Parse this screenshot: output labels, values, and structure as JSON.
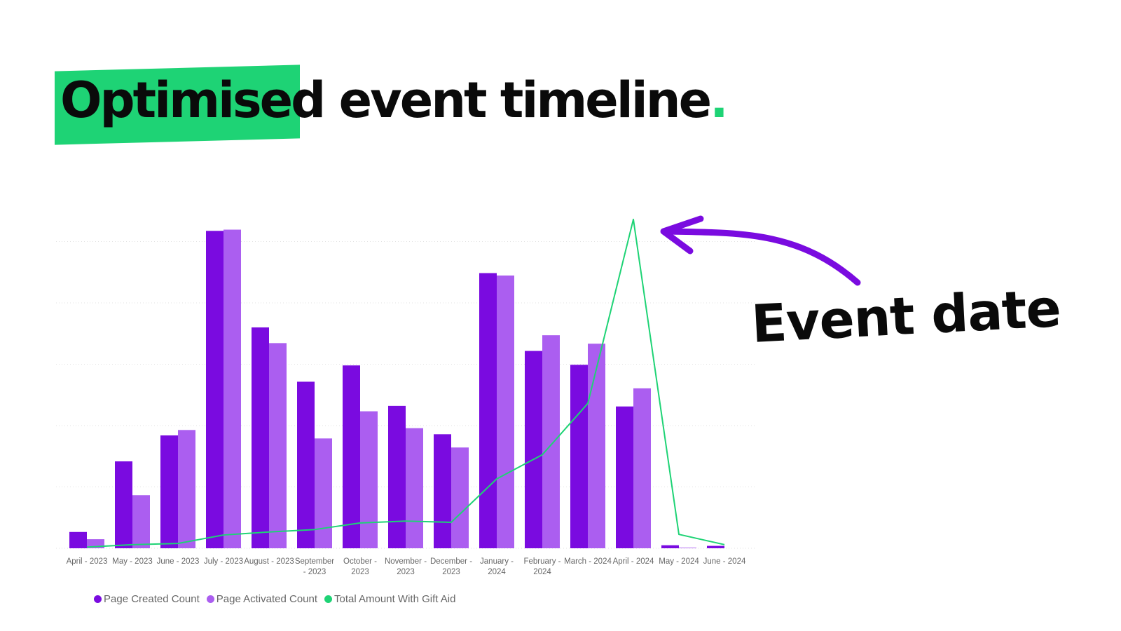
{
  "headline": {
    "highlighted": "Optimised",
    "rest": " event timeline",
    "period": "."
  },
  "annotation": {
    "label": "Event date"
  },
  "colors": {
    "highlight": "#1ed375",
    "accent_period": "#1ed375",
    "arrow": "#7a0be0"
  },
  "chart_data": {
    "type": "bar",
    "categories": [
      "April - 2023",
      "May - 2023",
      "June - 2023",
      "July - 2023",
      "August - 2023",
      "September - 2023",
      "October - 2023",
      "November - 2023",
      "December - 2023",
      "January - 2024",
      "February - 2024",
      "March - 2024",
      "April - 2024",
      "May - 2024",
      "June - 2024"
    ],
    "series": [
      {
        "name": "Page Created Count",
        "type": "bar",
        "color": "#7a0be0",
        "values": [
          27,
          144,
          187,
          526,
          366,
          276,
          303,
          236,
          189,
          456,
          327,
          304,
          235,
          5,
          4
        ]
      },
      {
        "name": "Page Activated Count",
        "type": "bar",
        "color": "#ab5ef0",
        "values": [
          15,
          88,
          196,
          528,
          340,
          182,
          227,
          199,
          167,
          452,
          353,
          339,
          265,
          1,
          0
        ]
      },
      {
        "name": "Total Amount With Gift Aid",
        "type": "line",
        "color": "#1ed375",
        "values": [
          2,
          6,
          8,
          22,
          27,
          31,
          42,
          45,
          43,
          115,
          155,
          240,
          545,
          23,
          6
        ]
      }
    ],
    "ylim": [
      0,
      560
    ],
    "grid": true,
    "axis_labels_visible": false,
    "legend_position": "bottom-left"
  }
}
